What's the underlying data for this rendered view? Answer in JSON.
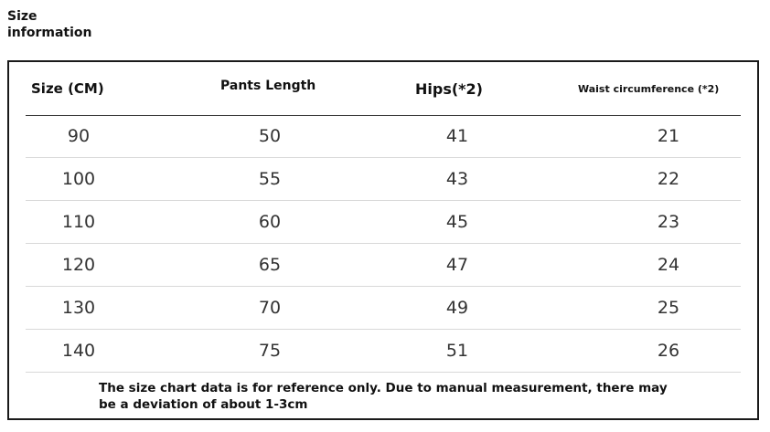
{
  "heading": {
    "line1": "Size",
    "line2": "information"
  },
  "table": {
    "headers": [
      "Size (CM)",
      "Pants Length",
      "Hips(*2)",
      "Waist circumference (*2)"
    ],
    "rows": [
      [
        "90",
        "50",
        "41",
        "21"
      ],
      [
        "100",
        "55",
        "43",
        "22"
      ],
      [
        "110",
        "60",
        "45",
        "23"
      ],
      [
        "120",
        "65",
        "47",
        "24"
      ],
      [
        "130",
        "70",
        "49",
        "25"
      ],
      [
        "140",
        "75",
        "51",
        "26"
      ]
    ]
  },
  "note": {
    "line1": "The size chart data is for reference only. Due to manual measurement, there may",
    "line2": "be a deviation of about 1-3cm"
  }
}
